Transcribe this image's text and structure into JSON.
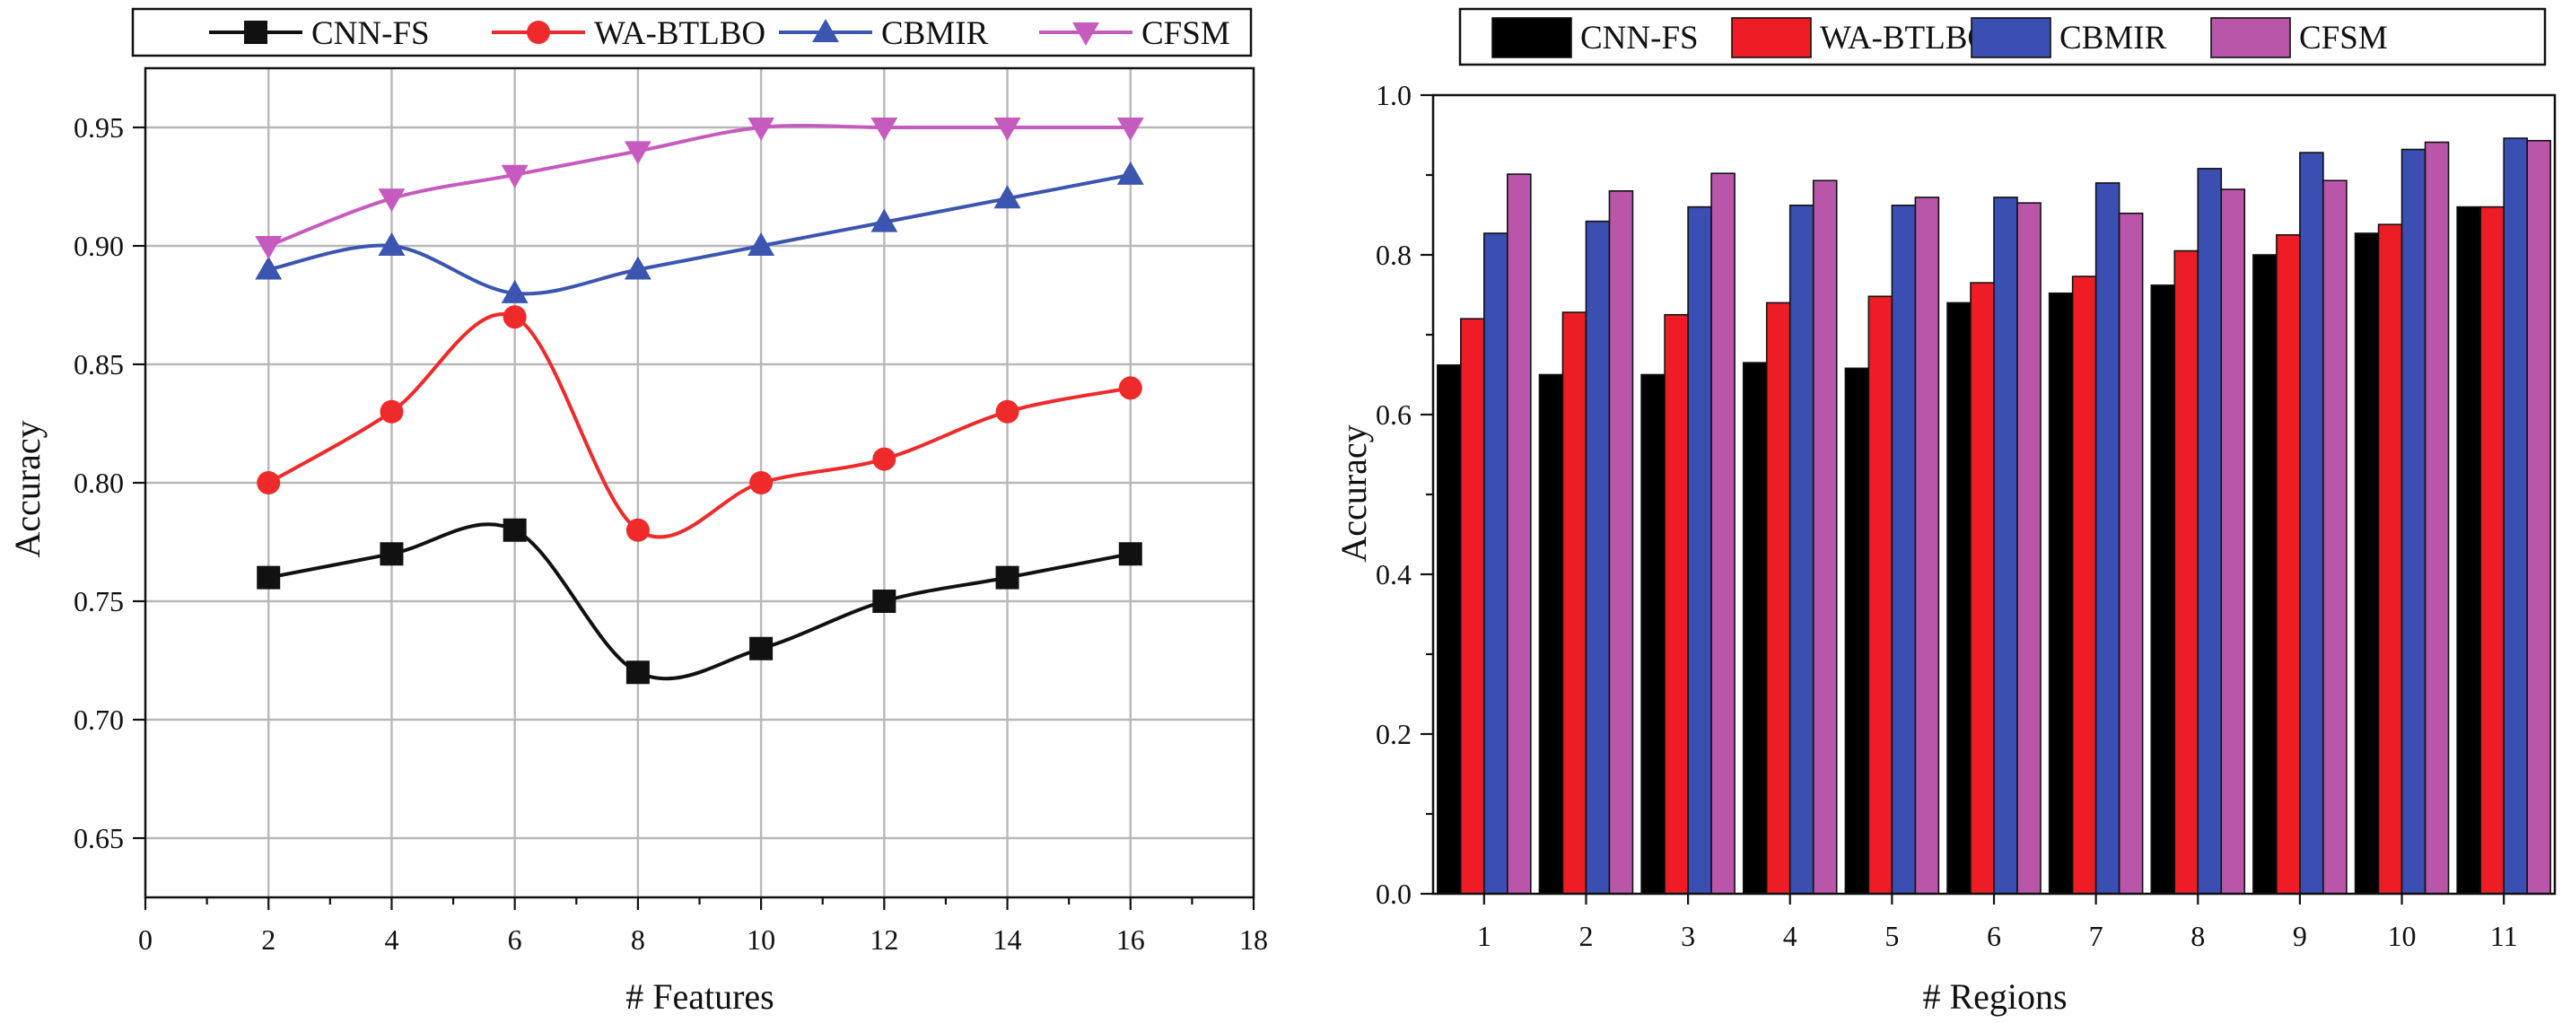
{
  "chart_data": [
    {
      "type": "line",
      "title": "",
      "xlabel": "# Features",
      "ylabel": "Accuracy",
      "xlim": [
        0,
        18
      ],
      "ylim": [
        0.625,
        0.975
      ],
      "xticks": [
        "0",
        "2",
        "4",
        "6",
        "8",
        "10",
        "12",
        "14",
        "16",
        "18"
      ],
      "yticks": [
        "0.65",
        "0.70",
        "0.75",
        "0.80",
        "0.85",
        "0.90",
        "0.95"
      ],
      "grid": true,
      "legend_position": "top",
      "x": [
        2,
        4,
        6,
        8,
        10,
        12,
        14,
        16
      ],
      "series": [
        {
          "name": "CNN-FS",
          "color": "#111111",
          "marker": "square",
          "values": [
            0.76,
            0.77,
            0.78,
            0.72,
            0.73,
            0.75,
            0.76,
            0.77
          ]
        },
        {
          "name": "WA-BTLBO",
          "color": "#ee2a2a",
          "marker": "circle",
          "values": [
            0.8,
            0.83,
            0.87,
            0.78,
            0.8,
            0.81,
            0.83,
            0.84
          ]
        },
        {
          "name": "CBMIR",
          "color": "#3b55b0",
          "marker": "triangle-up",
          "values": [
            0.89,
            0.9,
            0.88,
            0.89,
            0.9,
            0.91,
            0.92,
            0.93
          ]
        },
        {
          "name": "CFSM",
          "color": "#c65bbf",
          "marker": "triangle-down",
          "values": [
            0.9,
            0.92,
            0.93,
            0.94,
            0.95,
            0.95,
            0.95,
            0.95
          ]
        }
      ]
    },
    {
      "type": "bar",
      "title": "",
      "xlabel": "# Regions",
      "ylabel": "Accuracy",
      "ylim": [
        0.0,
        1.0
      ],
      "yticks": [
        "0.0",
        "0.2",
        "0.4",
        "0.6",
        "0.8",
        "1.0"
      ],
      "grid": false,
      "legend_position": "top",
      "categories": [
        "1",
        "2",
        "3",
        "4",
        "5",
        "6",
        "7",
        "8",
        "9",
        "10",
        "11"
      ],
      "series": [
        {
          "name": "CNN-FS",
          "color": "#000000",
          "values": [
            0.662,
            0.65,
            0.65,
            0.665,
            0.658,
            0.74,
            0.752,
            0.762,
            0.8,
            0.827,
            0.86
          ]
        },
        {
          "name": "WA-BTLBO",
          "color": "#ee1c25",
          "values": [
            0.72,
            0.728,
            0.725,
            0.74,
            0.748,
            0.765,
            0.773,
            0.805,
            0.825,
            0.838,
            0.86
          ]
        },
        {
          "name": "CBMIR",
          "color": "#3a4fb1",
          "values": [
            0.827,
            0.842,
            0.86,
            0.862,
            0.862,
            0.872,
            0.89,
            0.908,
            0.928,
            0.932,
            0.946
          ]
        },
        {
          "name": "CFSM",
          "color": "#b956aa",
          "values": [
            0.901,
            0.88,
            0.902,
            0.893,
            0.872,
            0.865,
            0.852,
            0.882,
            0.893,
            0.941,
            0.943
          ]
        }
      ]
    }
  ]
}
